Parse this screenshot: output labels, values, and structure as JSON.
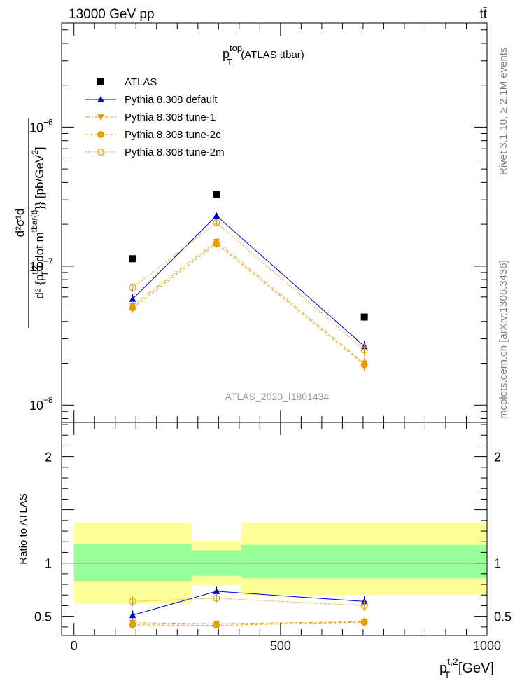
{
  "header": {
    "left": "13000 GeV pp",
    "right": "tt̄"
  },
  "sidebar": {
    "rivet": "Rivet 3.1.10, ≥ 2.1M events",
    "source": "mcplots.cern.ch [arXiv:1306.3436]"
  },
  "colors": {
    "atlas": "#000000",
    "default": "#0000cc",
    "tunes": "#e69f00",
    "band_inner": "#99ff99",
    "band_outer": "#ffff99"
  },
  "chart_data": [
    {
      "type": "scatter",
      "title": "p_T^{top} (ATLAS ttbar)",
      "title_main": "p",
      "title_sup": "top",
      "title_sub": "T",
      "title_rest": " (ATLAS ttbar)",
      "watermark": "ATLAS_2020_I1801434",
      "ylabel": "d²σ¹d / d²{p_T^{t,2} cdot m^{tbar{t}}} [pb/GeV²]",
      "ylabel_num": "d²σ¹d",
      "ylabel_den": "d² {p",
      "ylabel_den_sup": "t,2",
      "ylabel_den_sub": "T",
      "ylabel_den_mid": " cdot m",
      "ylabel_den_sup2": "tbar{t}",
      "ylabel_den_end": "}} [pb/GeV",
      "ylabel_den_sup3": "2",
      "ylabel_den_close": "]",
      "yscale": "log",
      "ylim": [
        7.5e-09,
        5.6e-06
      ],
      "xlim": [
        -30,
        1000
      ],
      "y_ticks": [
        {
          "value": 1e-08,
          "base": "10",
          "exp": "−8"
        },
        {
          "value": 1e-07,
          "base": "10",
          "exp": "−7"
        },
        {
          "value": 1e-06,
          "base": "10",
          "exp": "−6"
        }
      ],
      "legend_position": "top-left",
      "x": [
        142,
        345,
        703
      ],
      "series": [
        {
          "name": "ATLAS",
          "marker": "square",
          "values": [
            1.13e-07,
            3.3e-07,
            4.3e-08
          ]
        },
        {
          "name": "Pythia 8.308 default",
          "marker": "triangle-up",
          "line": "solid",
          "values": [
            5.8e-08,
            2.3e-07,
            2.65e-08
          ],
          "errors": [
            5e-09,
            1.3e-08,
            2.5e-09
          ]
        },
        {
          "name": "Pythia 8.308 tune-1",
          "marker": "triangle-down",
          "line": "dashdot",
          "values": [
            5.2e-08,
            1.5e-07,
            2e-08
          ],
          "errors": [
            4e-09,
            1e-08,
            2e-09
          ]
        },
        {
          "name": "Pythia 8.308 tune-2c",
          "marker": "circle-filled",
          "line": "dashed",
          "values": [
            5e-08,
            1.45e-07,
            1.95e-08
          ],
          "errors": [
            4e-09,
            1e-08,
            2e-09
          ]
        },
        {
          "name": "Pythia 8.308 tune-2m",
          "marker": "circle-open",
          "line": "dotted",
          "values": [
            7e-08,
            2.05e-07,
            2.5e-08
          ],
          "errors": [
            5e-09,
            1.2e-08,
            2.5e-09
          ]
        }
      ]
    },
    {
      "type": "scatter",
      "ylabel": "Ratio to ATLAS",
      "xlabel": "p_T^{t,2} [GeV]",
      "xlabel_main": "p",
      "xlabel_sub": "T",
      "xlabel_sup": "t,2",
      "xlabel_rest": " [GeV]",
      "xlim": [
        -30,
        1000
      ],
      "ylim": [
        0.32,
        2.32
      ],
      "x_ticks": [
        0,
        500,
        1000
      ],
      "y_ticks": [
        0.5,
        1,
        2
      ],
      "bins": [
        {
          "lo": 0,
          "hi": 285,
          "inner": [
            0.83,
            1.18
          ],
          "outer": [
            0.62,
            1.38
          ]
        },
        {
          "lo": 285,
          "hi": 405,
          "inner": [
            0.88,
            1.12
          ],
          "outer": [
            0.79,
            1.21
          ]
        },
        {
          "lo": 405,
          "hi": 1000,
          "inner": [
            0.86,
            1.17
          ],
          "outer": [
            0.7,
            1.38
          ]
        }
      ],
      "x": [
        142,
        345,
        703
      ],
      "series": [
        {
          "name": "Pythia 8.308 default",
          "values": [
            0.51,
            0.735,
            0.64
          ],
          "errors": [
            0.045,
            0.045,
            0.05
          ]
        },
        {
          "name": "Pythia 8.308 tune-1",
          "values": [
            0.44,
            0.43,
            0.45
          ],
          "errors": [
            0.04,
            0.03,
            0.04
          ]
        },
        {
          "name": "Pythia 8.308 tune-2c",
          "values": [
            0.42,
            0.415,
            0.445
          ],
          "errors": [
            0.04,
            0.03,
            0.04
          ]
        },
        {
          "name": "Pythia 8.308 tune-2m",
          "values": [
            0.64,
            0.67,
            0.6
          ],
          "errors": [
            0.045,
            0.04,
            0.05
          ]
        }
      ]
    }
  ]
}
